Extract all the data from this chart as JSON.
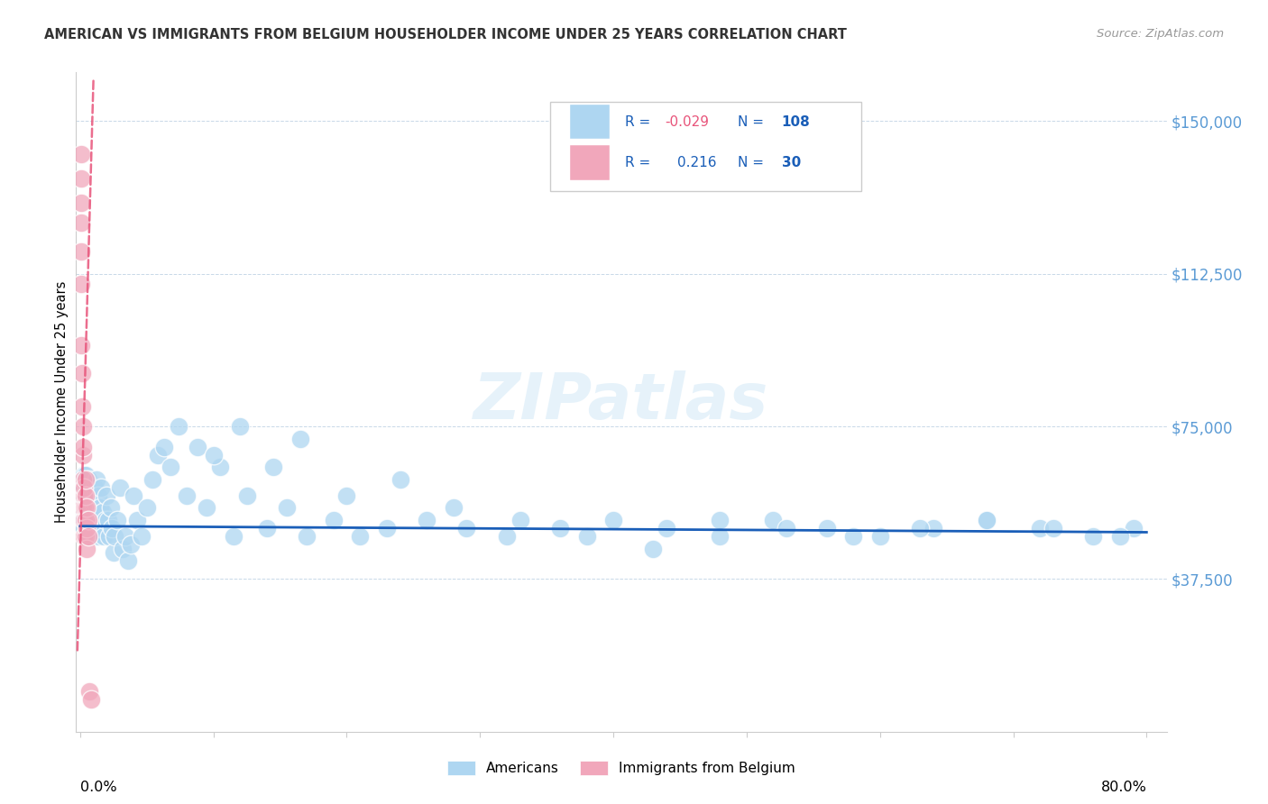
{
  "title": "AMERICAN VS IMMIGRANTS FROM BELGIUM HOUSEHOLDER INCOME UNDER 25 YEARS CORRELATION CHART",
  "source": "Source: ZipAtlas.com",
  "ylabel": "Householder Income Under 25 years",
  "ytick_values": [
    0,
    37500,
    75000,
    112500,
    150000
  ],
  "ytick_labels": [
    "",
    "$37,500",
    "$75,000",
    "$112,500",
    "$150,000"
  ],
  "ylim": [
    0,
    162000
  ],
  "xlim": [
    -0.003,
    0.815
  ],
  "color_americans": "#aed6f1",
  "color_belgium": "#f1a7bb",
  "line_color_americans": "#1a5eb8",
  "line_color_belgium": "#e8547a",
  "watermark": "ZIPatlas",
  "legend_r_am": "-0.029",
  "legend_n_am": "108",
  "legend_r_be": "0.216",
  "legend_n_be": "30",
  "am_x": [
    0.001,
    0.0015,
    0.002,
    0.002,
    0.0025,
    0.003,
    0.003,
    0.003,
    0.004,
    0.004,
    0.004,
    0.004,
    0.005,
    0.005,
    0.005,
    0.005,
    0.006,
    0.006,
    0.006,
    0.007,
    0.007,
    0.007,
    0.008,
    0.008,
    0.008,
    0.009,
    0.009,
    0.01,
    0.01,
    0.011,
    0.011,
    0.012,
    0.012,
    0.013,
    0.014,
    0.014,
    0.015,
    0.016,
    0.016,
    0.017,
    0.018,
    0.019,
    0.02,
    0.021,
    0.022,
    0.023,
    0.024,
    0.025,
    0.026,
    0.028,
    0.03,
    0.032,
    0.034,
    0.036,
    0.038,
    0.04,
    0.043,
    0.046,
    0.05,
    0.054,
    0.058,
    0.063,
    0.068,
    0.074,
    0.08,
    0.088,
    0.095,
    0.105,
    0.115,
    0.125,
    0.14,
    0.155,
    0.17,
    0.19,
    0.21,
    0.23,
    0.26,
    0.29,
    0.32,
    0.36,
    0.4,
    0.44,
    0.48,
    0.52,
    0.56,
    0.6,
    0.64,
    0.68,
    0.72,
    0.76,
    0.79,
    0.1,
    0.12,
    0.145,
    0.165,
    0.2,
    0.24,
    0.28,
    0.33,
    0.38,
    0.43,
    0.48,
    0.53,
    0.58,
    0.63,
    0.68,
    0.73,
    0.78
  ],
  "am_y": [
    55000,
    62000,
    58000,
    52000,
    60000,
    57000,
    63000,
    50000,
    57000,
    63000,
    55000,
    48000,
    60000,
    54000,
    58000,
    52000,
    56000,
    62000,
    50000,
    58000,
    52000,
    55000,
    54000,
    60000,
    48000,
    58000,
    52000,
    56000,
    50000,
    60000,
    54000,
    62000,
    56000,
    52000,
    58000,
    48000,
    55000,
    60000,
    50000,
    54000,
    48000,
    52000,
    58000,
    52000,
    48000,
    55000,
    50000,
    44000,
    48000,
    52000,
    60000,
    45000,
    48000,
    42000,
    46000,
    58000,
    52000,
    48000,
    55000,
    62000,
    68000,
    70000,
    65000,
    75000,
    58000,
    70000,
    55000,
    65000,
    48000,
    58000,
    50000,
    55000,
    48000,
    52000,
    48000,
    50000,
    52000,
    50000,
    48000,
    50000,
    52000,
    50000,
    48000,
    52000,
    50000,
    48000,
    50000,
    52000,
    50000,
    48000,
    50000,
    68000,
    75000,
    65000,
    72000,
    58000,
    62000,
    55000,
    52000,
    48000,
    45000,
    52000,
    50000,
    48000,
    50000,
    52000,
    50000,
    48000
  ],
  "be_x": [
    0.0005,
    0.0005,
    0.001,
    0.001,
    0.001,
    0.001,
    0.001,
    0.0015,
    0.0015,
    0.002,
    0.002,
    0.002,
    0.002,
    0.0025,
    0.003,
    0.003,
    0.003,
    0.003,
    0.0035,
    0.004,
    0.004,
    0.004,
    0.0045,
    0.005,
    0.005,
    0.005,
    0.006,
    0.006,
    0.007,
    0.008
  ],
  "be_y": [
    142000,
    136000,
    130000,
    125000,
    118000,
    110000,
    95000,
    88000,
    80000,
    75000,
    68000,
    62000,
    55000,
    70000,
    58000,
    52000,
    60000,
    48000,
    55000,
    58000,
    52000,
    48000,
    62000,
    55000,
    50000,
    45000,
    52000,
    48000,
    10000,
    8000
  ]
}
